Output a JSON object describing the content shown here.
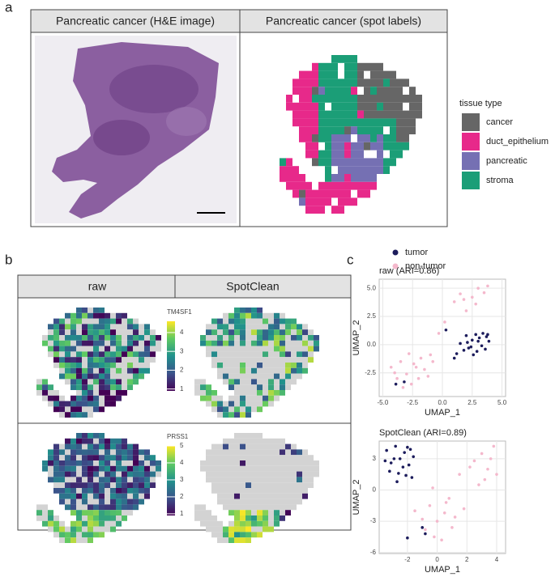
{
  "panel_labels": [
    "a",
    "b",
    "c"
  ],
  "panel_a": {
    "headers": [
      "Pancreatic cancer (H&E image)",
      "Pancreatic cancer (spot labels)"
    ],
    "legend": {
      "title": "tissue type",
      "items": [
        {
          "label": "cancer",
          "color": "#666666"
        },
        {
          "label": "duct_epithelium",
          "color": "#e7298a"
        },
        {
          "label": "pancreatic",
          "color": "#7570b3"
        },
        {
          "label": "stroma",
          "color": "#1b9e77"
        }
      ]
    }
  },
  "panel_b": {
    "headers": [
      "raw",
      "SpotClean"
    ],
    "colorbars": [
      {
        "title": "TM4SF1",
        "lim": [
          0.9,
          4.6
        ],
        "ticks": [
          1,
          2,
          3,
          4
        ]
      },
      {
        "title": "PRSS1",
        "lim": [
          0.9,
          5.0
        ],
        "ticks": [
          1,
          2,
          3,
          4,
          5
        ]
      }
    ]
  },
  "chart_data": [
    {
      "type": "scatter",
      "title": "raw (ARI=0.86)",
      "x_label": "UMAP_1",
      "y_label": "UMAP_2",
      "xlim": [
        -5.3,
        5.3
      ],
      "ylim": [
        -4.6,
        5.8
      ],
      "xticks": [
        {
          "value": -5,
          "label": "-5.0"
        },
        -2.5,
        {
          "value": 0,
          "label": "0.0"
        },
        2.5,
        {
          "value": 5,
          "label": "5.0"
        }
      ],
      "yticks": [
        -2.5,
        {
          "value": 0,
          "label": "0.0"
        },
        2.5,
        {
          "value": 5,
          "label": "5.0"
        }
      ],
      "grid": true,
      "series": [
        {
          "name": "tumor",
          "color": "#1c1c5c",
          "x": [
            1.2,
            1.8,
            2.1,
            2.5,
            2.8,
            3.1,
            3.4,
            3.7,
            3.9,
            2.2,
            2.9,
            3.3,
            1.5,
            2.6,
            3.0,
            3.6,
            2.0,
            1.0,
            0.3,
            3.8,
            2.4,
            -3.9,
            -3.2
          ],
          "values": [
            -0.8,
            -0.5,
            0.2,
            0.4,
            0.9,
            0.6,
            1.0,
            0.7,
            0.3,
            -0.3,
            -0.6,
            -0.1,
            0.1,
            -0.9,
            0.3,
            -0.4,
            0.8,
            -1.2,
            1.3,
            0.9,
            -0.2,
            -3.5,
            -3.3
          ]
        },
        {
          "name": "non-tumor",
          "color": "#f4b8cc",
          "x": [
            -4.3,
            -3.8,
            -3.5,
            -3.0,
            -2.6,
            -2.2,
            -1.8,
            -1.2,
            -0.8,
            -3.3,
            -2.8,
            -2.0,
            -1.5,
            -4.0,
            -2.4,
            -1.0,
            1.0,
            1.5,
            2.0,
            2.5,
            3.0,
            3.5,
            3.8,
            1.8,
            2.8,
            0.2,
            -0.3
          ],
          "values": [
            -2.0,
            -3.0,
            -1.5,
            -2.6,
            -3.5,
            -2.0,
            -1.2,
            -2.8,
            -1.5,
            -3.8,
            -0.8,
            -3.0,
            -2.2,
            -2.5,
            -1.7,
            -0.9,
            3.8,
            4.5,
            3.0,
            4.2,
            5.0,
            4.6,
            5.2,
            4.0,
            3.6,
            2.0,
            1.0
          ]
        }
      ]
    },
    {
      "type": "scatter",
      "title": "SpotClean (ARI=0.89)",
      "x_label": "UMAP_1",
      "y_label": "UMAP_2",
      "xlim": [
        -3.9,
        4.6
      ],
      "ylim": [
        -6.1,
        4.7
      ],
      "xticks": [
        -2,
        0,
        2,
        4
      ],
      "yticks": [
        -6,
        -3,
        0,
        3
      ],
      "grid": true,
      "series": [
        {
          "color": "#1c1c5c",
          "x": [
            -3.4,
            -3.1,
            -2.8,
            -2.5,
            -2.2,
            -1.9,
            -1.6,
            -3.2,
            -2.6,
            -2.0,
            -1.7,
            -2.9,
            -2.3,
            -3.5,
            -1.8,
            -2.7,
            -2.1,
            -0.8,
            -1.0,
            -2.0
          ],
          "values": [
            3.8,
            2.6,
            4.2,
            3.0,
            3.6,
            2.4,
            3.2,
            1.8,
            1.6,
            4.1,
            1.2,
            3.0,
            2.2,
            2.8,
            3.9,
            0.8,
            1.4,
            -4.2,
            -3.6,
            -4.6
          ]
        },
        {
          "color": "#f4b8cc",
          "x": [
            2.5,
            3.0,
            3.4,
            3.8,
            4.0,
            2.8,
            3.6,
            3.2,
            2.2,
            1.5,
            0.8,
            -0.5,
            -1.0,
            0.0,
            0.5,
            1.0,
            -0.2,
            0.3,
            -1.5,
            -0.8,
            1.2,
            0.6,
            -0.3,
            1.8
          ],
          "values": [
            2.8,
            3.5,
            2.0,
            4.2,
            1.5,
            0.5,
            3.0,
            1.0,
            2.2,
            1.5,
            -0.8,
            -1.5,
            -2.8,
            -3.0,
            -2.2,
            -3.6,
            -4.5,
            -4.8,
            -2.0,
            -3.8,
            -2.6,
            -1.2,
            0.2,
            -1.8
          ]
        }
      ]
    }
  ]
}
